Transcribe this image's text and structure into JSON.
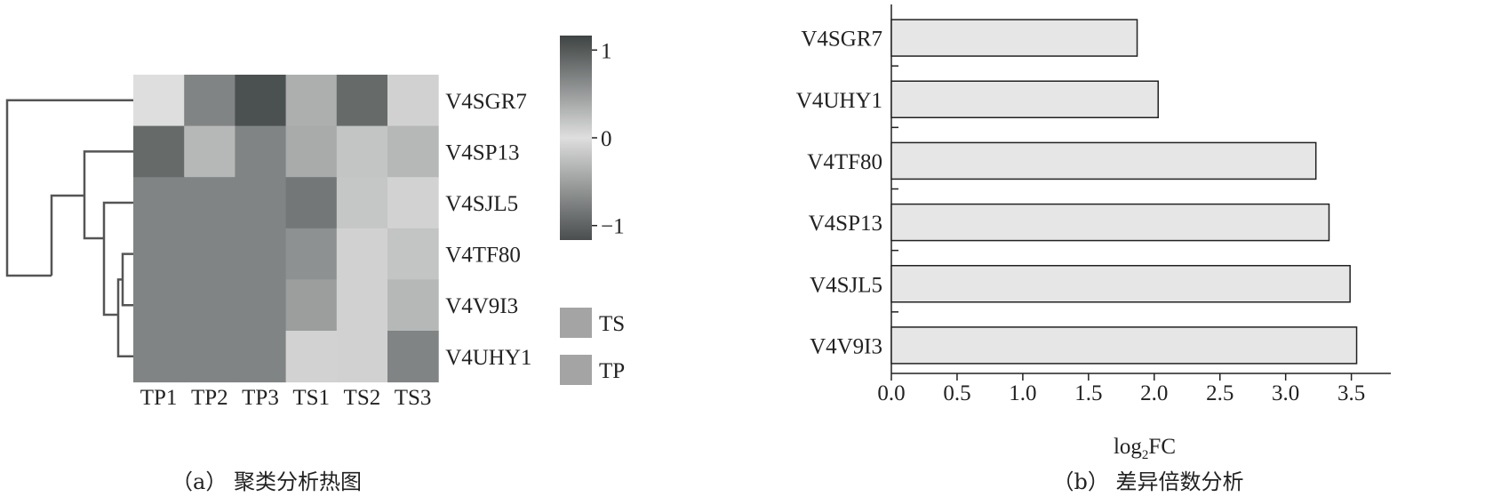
{
  "chart_data": [
    {
      "type": "heatmap",
      "columns": [
        "TP1",
        "TP2",
        "TP3",
        "TS1",
        "TS2",
        "TS3"
      ],
      "rows": [
        "V4SGR7",
        "V4SP13",
        "V4SJL5",
        "V4TF80",
        "V4V9I3",
        "V4UHY1"
      ],
      "values": [
        [
          0.0,
          0.7,
          1.1,
          -0.4,
          0.9,
          0.1
        ],
        [
          0.9,
          0.3,
          0.7,
          0.4,
          0.2,
          0.3
        ],
        [
          0.7,
          0.7,
          0.7,
          0.8,
          -0.2,
          -0.1
        ],
        [
          0.7,
          0.7,
          0.7,
          0.6,
          0.1,
          0.2
        ],
        [
          0.7,
          0.7,
          0.7,
          0.5,
          0.1,
          0.3
        ],
        [
          0.7,
          0.7,
          0.7,
          -0.1,
          0.1,
          0.7
        ]
      ],
      "colorbar": {
        "ticks": [
          1,
          0,
          -1
        ],
        "tick_labels": [
          "1",
          "0",
          "−1"
        ]
      },
      "annotation_legend": [
        "TS",
        "TP"
      ],
      "dendrogram": "rows",
      "caption": "（a） 聚类分析热图"
    },
    {
      "type": "bar",
      "orientation": "horizontal",
      "categories": [
        "V4SGR7",
        "V4UHY1",
        "V4TF80",
        "V4SP13",
        "V4SJL5",
        "V4V9I3"
      ],
      "values": [
        1.87,
        2.03,
        3.23,
        3.33,
        3.49,
        3.54
      ],
      "xlim": [
        0.0,
        3.8
      ],
      "xticks": [
        "0.0",
        "0.5",
        "1.0",
        "1.5",
        "2.0",
        "2.5",
        "3.0",
        "3.5"
      ],
      "xlabel": {
        "base": "log",
        "sub": "2",
        "suffix": "FC"
      },
      "ylabel": "",
      "bar_color": "#e6e6e6",
      "caption": "（b） 差异倍数分析"
    }
  ]
}
